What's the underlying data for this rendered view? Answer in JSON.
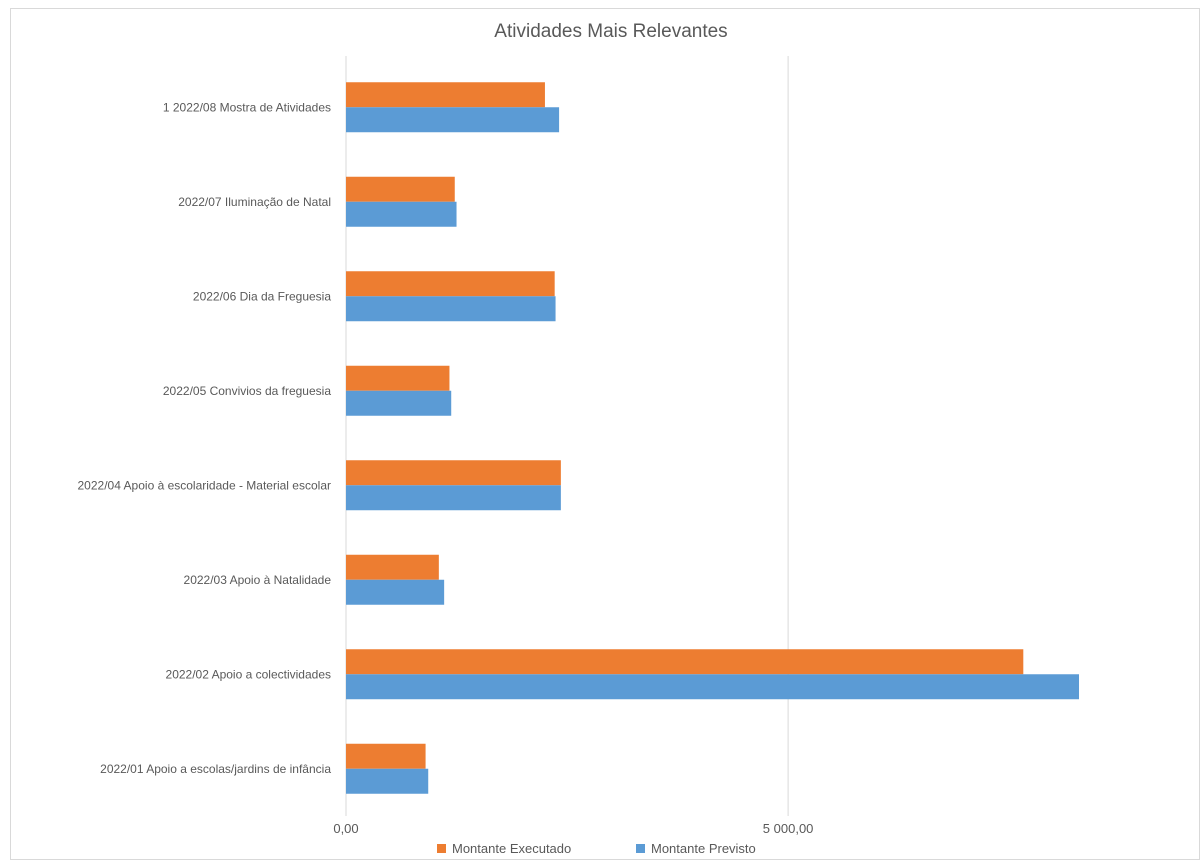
{
  "chart_data": {
    "type": "bar",
    "orientation": "horizontal",
    "title": "Atividades Mais Relevantes",
    "categories": [
      "1 2022/08 Mostra de Atividades",
      "2022/07 Iluminação de Natal",
      "2022/06 Dia da Freguesia",
      "2022/05 Convivios da freguesia",
      "2022/04 Apoio à escolaridade - Material escolar",
      "2022/03 Apoio à Natalidade",
      "2022/02 Apoio a colectividades",
      "2022/01 Apoio a escolas/jardins de infância"
    ],
    "series": [
      {
        "name": "Montante Executado",
        "color": "#ed7d31",
        "values": [
          2250,
          1230,
          2360,
          1170,
          2430,
          1050,
          7660,
          900
        ]
      },
      {
        "name": "Montante Previsto",
        "color": "#5b9bd5",
        "values": [
          2410,
          1250,
          2370,
          1190,
          2430,
          1110,
          8290,
          930
        ]
      }
    ],
    "xlim": [
      0,
      9500
    ],
    "ticks": [
      {
        "value": 0,
        "label": "0,00"
      },
      {
        "value": 5000,
        "label": "5 000,00"
      }
    ],
    "grid": "vertical",
    "legend_position": "bottom",
    "xlabel": "",
    "ylabel": ""
  }
}
